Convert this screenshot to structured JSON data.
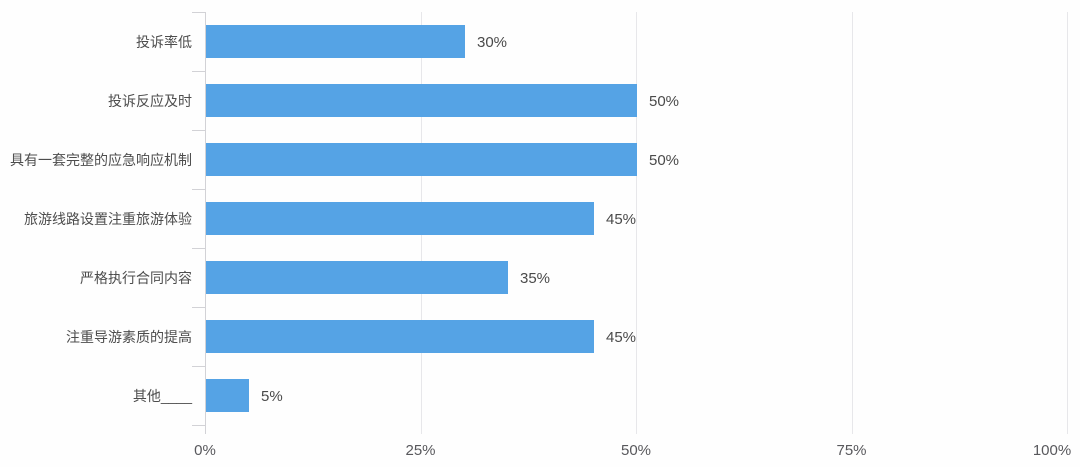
{
  "chart_data": {
    "type": "bar",
    "orientation": "horizontal",
    "title": "",
    "xlabel": "",
    "ylabel": "",
    "categories": [
      "投诉率低",
      "投诉反应及时",
      "具有一套完整的应急响应机制",
      "旅游线路设置注重旅游体验",
      "严格执行合同内容",
      "注重导游素质的提高",
      "其他____"
    ],
    "values": [
      30,
      50,
      50,
      45,
      35,
      45,
      5
    ],
    "value_labels": [
      "30%",
      "50%",
      "50%",
      "45%",
      "35%",
      "45%",
      "5%"
    ],
    "x_ticks": [
      {
        "value": 0,
        "label": "0%"
      },
      {
        "value": 25,
        "label": "25%"
      },
      {
        "value": 50,
        "label": "50%"
      },
      {
        "value": 75,
        "label": "75%"
      },
      {
        "value": 100,
        "label": "100%"
      }
    ],
    "xlim": [
      0,
      100
    ],
    "grid": true,
    "legend": false,
    "colors": {
      "bar": "#55a3e5",
      "gridline": "#e7e7ea",
      "axis": "#d2d2d6",
      "category_text": "#4d4d4d",
      "value_text": "#4a4a4a",
      "tick_text": "#58585c",
      "background": "#fefefe"
    }
  }
}
